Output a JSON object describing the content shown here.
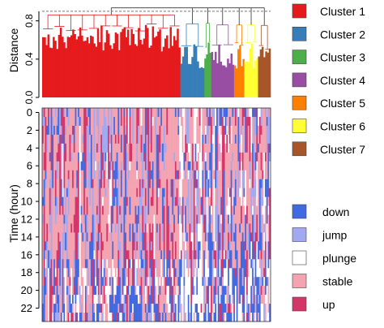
{
  "chart_data": [
    {
      "type": "dendrogram",
      "ylabel": "Distance",
      "yticks": [
        "0.0",
        "0.4",
        "0.8"
      ],
      "ylim": [
        0,
        0.95
      ],
      "cut_height": 0.9,
      "grid": false,
      "clusters": [
        {
          "name": "Cluster 1",
          "color": "#e41a1c",
          "fraction": 0.605
        },
        {
          "name": "Cluster 2",
          "color": "#377eb8",
          "fraction": 0.105
        },
        {
          "name": "Cluster 3",
          "color": "#4daf4a",
          "fraction": 0.03
        },
        {
          "name": "Cluster 4",
          "color": "#984ea3",
          "fraction": 0.1
        },
        {
          "name": "Cluster 5",
          "color": "#ff7f00",
          "fraction": 0.045
        },
        {
          "name": "Cluster 6",
          "color": "#ffff33",
          "fraction": 0.06
        },
        {
          "name": "Cluster 7",
          "color": "#a65628",
          "fraction": 0.055
        }
      ]
    },
    {
      "type": "heatmap",
      "ylabel": "Time (hour)",
      "yticks": [
        "0",
        "2",
        "4",
        "6",
        "8",
        "10",
        "12",
        "14",
        "16",
        "18",
        "20",
        "22"
      ],
      "rows": 24,
      "states": [
        {
          "name": "down",
          "color": "#4169e1"
        },
        {
          "name": "jump",
          "color": "#a3a9f0"
        },
        {
          "name": "plunge",
          "color": "#ffffff"
        },
        {
          "name": "stable",
          "color": "#f4a3b0"
        },
        {
          "name": "up",
          "color": "#d6356a"
        }
      ]
    }
  ],
  "legend_position": "right"
}
